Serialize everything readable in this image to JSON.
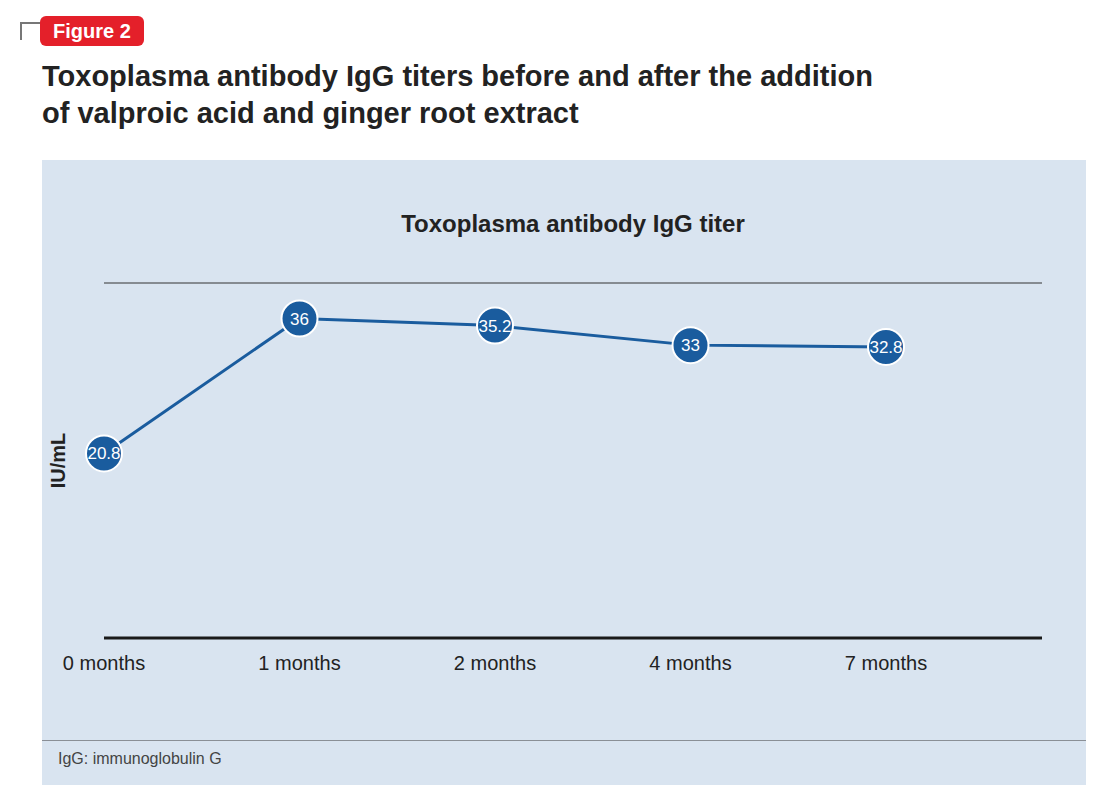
{
  "chart_data": {
    "type": "line",
    "figure_label": "Figure 2",
    "title": "Toxoplasma antibody IgG titers before and after the addition\nof valproic acid and ginger root extract",
    "subtitle": "Toxoplasma antibody IgG titer",
    "y_label": "IU/mL",
    "footnote": "IgG: immunoglobulin G",
    "categories": [
      "0 months",
      "1 months",
      "2 months",
      "4 months",
      "7 months"
    ],
    "values": [
      20.8,
      36,
      35.2,
      33,
      32.8
    ],
    "color": "#1a5c9e",
    "marker": "circle",
    "data_labels": true,
    "ylim": [
      0,
      40
    ],
    "yticks": [
      0,
      5,
      10,
      15,
      25,
      30,
      35,
      40
    ],
    "grid": true,
    "tick_labels": "x"
  }
}
